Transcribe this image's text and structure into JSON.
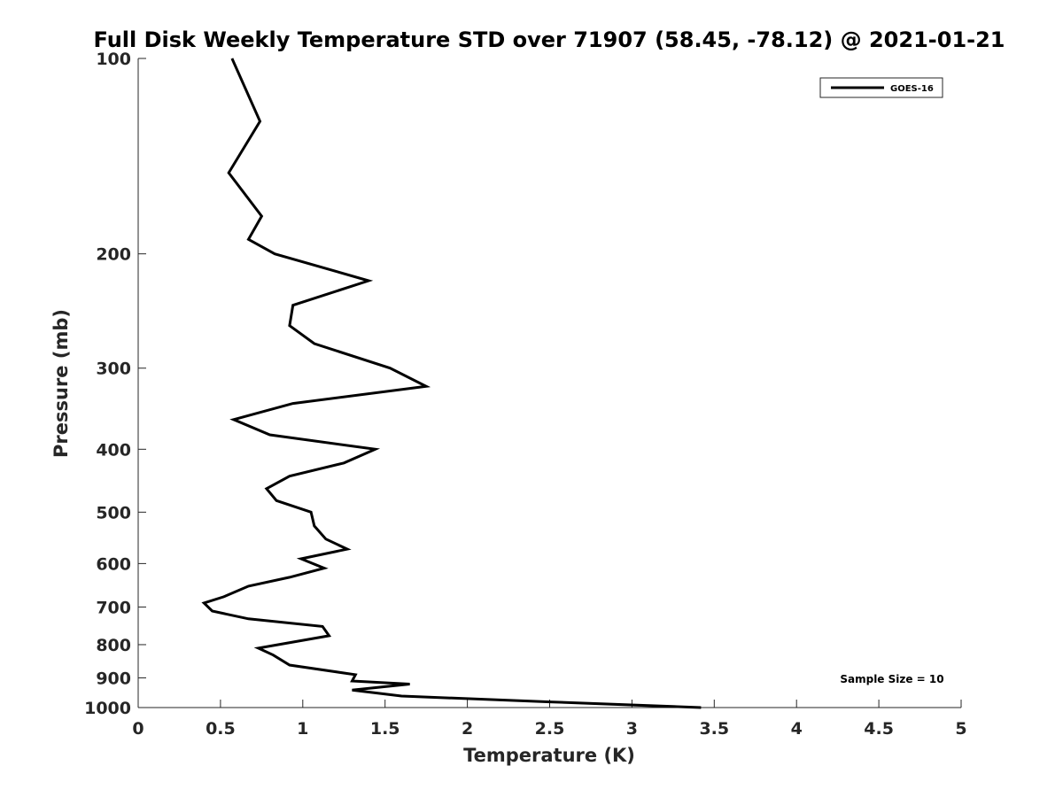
{
  "chart_data": {
    "type": "line",
    "title": "Full Disk Weekly Temperature STD over 71907 (58.45, -78.12) @ 2021-01-21",
    "xlabel": "Temperature (K)",
    "ylabel": "Pressure (mb)",
    "xlim": [
      0,
      5
    ],
    "ylim": [
      100,
      1000
    ],
    "y_scale": "log",
    "y_reversed": true,
    "xticks": [
      "0",
      "0.5",
      "1",
      "1.5",
      "2",
      "2.5",
      "3",
      "3.5",
      "4",
      "4.5",
      "5"
    ],
    "yticks": [
      "100",
      "200",
      "300",
      "400",
      "500",
      "600",
      "700",
      "800",
      "900",
      "1000"
    ],
    "grid": false,
    "legend_position": "top-right",
    "annotation": "Sample Size = 10",
    "series": [
      {
        "name": "GOES-16",
        "color": "#000000",
        "points": [
          [
            0.57,
            100
          ],
          [
            0.74,
            125
          ],
          [
            0.55,
            150
          ],
          [
            0.75,
            175
          ],
          [
            0.67,
            190
          ],
          [
            0.83,
            200
          ],
          [
            1.4,
            220
          ],
          [
            0.94,
            240
          ],
          [
            0.92,
            258
          ],
          [
            1.07,
            275
          ],
          [
            1.53,
            300
          ],
          [
            1.75,
            320
          ],
          [
            0.94,
            340
          ],
          [
            0.58,
            360
          ],
          [
            0.8,
            380
          ],
          [
            1.44,
            400
          ],
          [
            1.25,
            420
          ],
          [
            0.92,
            440
          ],
          [
            0.78,
            460
          ],
          [
            0.84,
            480
          ],
          [
            1.05,
            500
          ],
          [
            1.07,
            525
          ],
          [
            1.14,
            550
          ],
          [
            1.27,
            570
          ],
          [
            0.99,
            590
          ],
          [
            1.13,
            610
          ],
          [
            0.92,
            630
          ],
          [
            0.67,
            650
          ],
          [
            0.52,
            675
          ],
          [
            0.4,
            690
          ],
          [
            0.45,
            710
          ],
          [
            0.67,
            730
          ],
          [
            1.12,
            750
          ],
          [
            1.16,
            775
          ],
          [
            0.85,
            800
          ],
          [
            0.73,
            810
          ],
          [
            0.82,
            830
          ],
          [
            0.92,
            860
          ],
          [
            1.32,
            890
          ],
          [
            1.3,
            910
          ],
          [
            1.65,
            920
          ],
          [
            1.3,
            940
          ],
          [
            1.6,
            960
          ],
          [
            2.5,
            980
          ],
          [
            3.42,
            1000
          ]
        ]
      }
    ]
  }
}
